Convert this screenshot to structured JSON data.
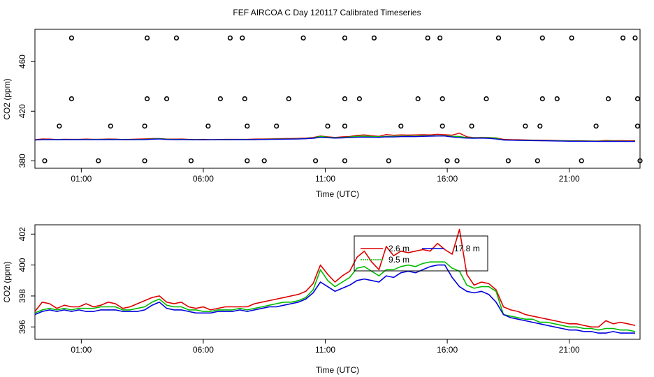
{
  "chart_data": {
    "title": "FEF AIRCOA C  Day 120117  Calibrated Timeseries",
    "charts": [
      {
        "id": "top",
        "type": "scatter+line",
        "xlabel": "Time (UTC)",
        "ylabel": "CO2 (ppm)",
        "xlim": [
          -0.9,
          23.9
        ],
        "ylim": [
          374,
          486
        ],
        "xticks": [
          1,
          6,
          11,
          16,
          21
        ],
        "xtick_labels": [
          "01:00",
          "06:00",
          "11:00",
          "16:00",
          "21:00"
        ],
        "yticks": [
          380,
          420,
          460
        ],
        "ytick_labels": [
          "380",
          "420",
          "460"
        ],
        "outlier_points": [
          [
            0.6,
            479
          ],
          [
            3.7,
            479
          ],
          [
            4.9,
            479
          ],
          [
            7.1,
            479
          ],
          [
            7.6,
            479
          ],
          [
            10.1,
            479
          ],
          [
            11.8,
            479
          ],
          [
            13.0,
            479
          ],
          [
            15.2,
            479
          ],
          [
            15.7,
            479
          ],
          [
            18.1,
            479
          ],
          [
            19.9,
            479
          ],
          [
            21.1,
            479
          ],
          [
            23.2,
            479
          ],
          [
            23.7,
            479
          ],
          [
            0.6,
            430
          ],
          [
            3.7,
            430
          ],
          [
            4.5,
            430
          ],
          [
            6.7,
            430
          ],
          [
            7.7,
            430
          ],
          [
            9.5,
            430
          ],
          [
            11.8,
            430
          ],
          [
            12.4,
            430
          ],
          [
            14.8,
            430
          ],
          [
            15.8,
            430
          ],
          [
            17.6,
            430
          ],
          [
            19.9,
            430
          ],
          [
            20.5,
            430
          ],
          [
            22.6,
            430
          ],
          [
            23.8,
            430
          ],
          [
            0.1,
            408
          ],
          [
            2.2,
            408
          ],
          [
            3.6,
            408
          ],
          [
            6.2,
            408
          ],
          [
            7.8,
            408
          ],
          [
            9.0,
            408
          ],
          [
            11.1,
            408
          ],
          [
            11.8,
            408
          ],
          [
            14.1,
            408
          ],
          [
            15.8,
            408
          ],
          [
            17.0,
            408
          ],
          [
            19.2,
            408
          ],
          [
            19.8,
            408
          ],
          [
            22.1,
            408
          ],
          [
            23.8,
            408
          ],
          [
            -0.5,
            380
          ],
          [
            1.7,
            380
          ],
          [
            3.6,
            380
          ],
          [
            5.5,
            380
          ],
          [
            7.8,
            380
          ],
          [
            8.5,
            380
          ],
          [
            10.6,
            380
          ],
          [
            11.8,
            380
          ],
          [
            13.6,
            380
          ],
          [
            16.0,
            380
          ],
          [
            16.4,
            380
          ],
          [
            18.5,
            380
          ],
          [
            19.7,
            380
          ],
          [
            21.5,
            380
          ],
          [
            23.9,
            380
          ]
        ],
        "series": [
          {
            "name": "2.6 m",
            "color": "#dd0000"
          },
          {
            "name": "9.5 m",
            "color": "#00bb00"
          },
          {
            "name": "17.8 m",
            "color": "#0000dd"
          }
        ]
      },
      {
        "id": "bottom",
        "type": "line",
        "xlabel": "Time (UTC)",
        "ylabel": "CO2 (ppm)",
        "xlim": [
          -0.9,
          23.9
        ],
        "ylim": [
          395.2,
          402.6
        ],
        "xticks": [
          1,
          6,
          11,
          16,
          21
        ],
        "xtick_labels": [
          "01:00",
          "06:00",
          "11:00",
          "16:00",
          "21:00"
        ],
        "yticks": [
          396,
          398,
          400,
          402
        ],
        "ytick_labels": [
          "396",
          "398",
          "400",
          "402"
        ],
        "legend_position": "top-center",
        "series": [
          {
            "name": "2.6 m",
            "color": "#dd0000",
            "x": [
              -0.9,
              -0.6,
              -0.3,
              0,
              0.3,
              0.6,
              0.9,
              1.2,
              1.5,
              1.8,
              2.1,
              2.4,
              2.7,
              3.0,
              3.3,
              3.6,
              3.9,
              4.2,
              4.5,
              4.8,
              5.1,
              5.4,
              5.7,
              6.0,
              6.3,
              6.6,
              6.9,
              7.2,
              7.5,
              7.8,
              8.1,
              8.4,
              8.7,
              9.0,
              9.3,
              9.6,
              9.9,
              10.2,
              10.5,
              10.8,
              11.1,
              11.4,
              11.7,
              12.0,
              12.3,
              12.6,
              12.9,
              13.2,
              13.5,
              13.8,
              14.1,
              14.4,
              14.7,
              15.0,
              15.3,
              15.6,
              15.9,
              16.2,
              16.5,
              16.8,
              17.1,
              17.4,
              17.7,
              18.0,
              18.3,
              18.6,
              18.9,
              19.2,
              19.5,
              19.8,
              20.1,
              20.4,
              20.7,
              21.0,
              21.3,
              21.6,
              21.9,
              22.2,
              22.5,
              22.8,
              23.1,
              23.4,
              23.7
            ],
            "values": [
              397.0,
              397.6,
              397.5,
              397.2,
              397.4,
              397.3,
              397.3,
              397.5,
              397.3,
              397.4,
              397.6,
              397.5,
              397.2,
              397.3,
              397.5,
              397.7,
              397.9,
              398.0,
              397.6,
              397.5,
              397.6,
              397.3,
              397.2,
              397.3,
              397.1,
              397.2,
              397.3,
              397.3,
              397.3,
              397.3,
              397.5,
              397.6,
              397.7,
              397.8,
              397.9,
              398.0,
              398.1,
              398.3,
              398.8,
              400.0,
              399.4,
              398.9,
              399.3,
              399.6,
              400.5,
              400.9,
              400.2,
              399.7,
              401.2,
              400.6,
              400.9,
              400.8,
              400.9,
              401.0,
              400.9,
              401.4,
              401.0,
              400.7,
              402.3,
              399.4,
              398.7,
              398.9,
              398.8,
              398.4,
              397.3,
              397.1,
              397.0,
              396.8,
              396.7,
              396.6,
              396.5,
              396.4,
              396.3,
              396.2,
              396.2,
              396.1,
              396.0,
              396.0,
              396.4,
              396.2,
              396.3,
              396.2,
              396.1
            ]
          },
          {
            "name": "9.5 m",
            "color": "#00bb00",
            "x": [
              -0.9,
              -0.6,
              -0.3,
              0,
              0.3,
              0.6,
              0.9,
              1.2,
              1.5,
              1.8,
              2.1,
              2.4,
              2.7,
              3.0,
              3.3,
              3.6,
              3.9,
              4.2,
              4.5,
              4.8,
              5.1,
              5.4,
              5.7,
              6.0,
              6.3,
              6.6,
              6.9,
              7.2,
              7.5,
              7.8,
              8.1,
              8.4,
              8.7,
              9.0,
              9.3,
              9.6,
              9.9,
              10.2,
              10.5,
              10.8,
              11.1,
              11.4,
              11.7,
              12.0,
              12.3,
              12.6,
              12.9,
              13.2,
              13.5,
              13.8,
              14.1,
              14.4,
              14.7,
              15.0,
              15.3,
              15.6,
              15.9,
              16.2,
              16.5,
              16.8,
              17.1,
              17.4,
              17.7,
              18.0,
              18.3,
              18.6,
              18.9,
              19.2,
              19.5,
              19.8,
              20.1,
              20.4,
              20.7,
              21.0,
              21.3,
              21.6,
              21.9,
              22.2,
              22.5,
              22.8,
              23.1,
              23.4,
              23.7
            ],
            "values": [
              396.9,
              397.1,
              397.2,
              397.1,
              397.2,
              397.1,
              397.2,
              397.2,
              397.2,
              397.3,
              397.3,
              397.3,
              397.1,
              397.1,
              397.2,
              397.3,
              397.6,
              397.8,
              397.4,
              397.3,
              397.3,
              397.1,
              397.1,
              397.0,
              397.0,
              397.1,
              397.1,
              397.1,
              397.2,
              397.1,
              397.2,
              397.3,
              397.4,
              397.5,
              397.6,
              397.6,
              397.7,
              397.9,
              398.4,
              399.7,
              399.0,
              398.6,
              398.9,
              399.2,
              399.8,
              399.9,
              399.6,
              399.3,
              399.7,
              399.7,
              399.9,
              400.0,
              399.9,
              400.1,
              400.2,
              400.2,
              400.2,
              399.8,
              399.6,
              398.7,
              398.5,
              398.6,
              398.6,
              398.3,
              396.8,
              396.7,
              396.6,
              396.5,
              396.5,
              396.3,
              396.3,
              396.2,
              396.1,
              396.0,
              396.0,
              395.9,
              395.9,
              395.8,
              395.9,
              395.9,
              395.8,
              395.8,
              395.7
            ]
          },
          {
            "name": "17.8 m",
            "color": "#0000dd",
            "x": [
              -0.9,
              -0.6,
              -0.3,
              0,
              0.3,
              0.6,
              0.9,
              1.2,
              1.5,
              1.8,
              2.1,
              2.4,
              2.7,
              3.0,
              3.3,
              3.6,
              3.9,
              4.2,
              4.5,
              4.8,
              5.1,
              5.4,
              5.7,
              6.0,
              6.3,
              6.6,
              6.9,
              7.2,
              7.5,
              7.8,
              8.1,
              8.4,
              8.7,
              9.0,
              9.3,
              9.6,
              9.9,
              10.2,
              10.5,
              10.8,
              11.1,
              11.4,
              11.7,
              12.0,
              12.3,
              12.6,
              12.9,
              13.2,
              13.5,
              13.8,
              14.1,
              14.4,
              14.7,
              15.0,
              15.3,
              15.6,
              15.9,
              16.2,
              16.5,
              16.8,
              17.1,
              17.4,
              17.7,
              18.0,
              18.3,
              18.6,
              18.9,
              19.2,
              19.5,
              19.8,
              20.1,
              20.4,
              20.7,
              21.0,
              21.3,
              21.6,
              21.9,
              22.2,
              22.5,
              22.8,
              23.1,
              23.4,
              23.7
            ],
            "values": [
              396.8,
              397.0,
              397.1,
              397.0,
              397.1,
              397.0,
              397.1,
              397.0,
              397.0,
              397.1,
              397.1,
              397.1,
              397.0,
              397.0,
              397.0,
              397.1,
              397.4,
              397.6,
              397.2,
              397.1,
              397.1,
              397.0,
              396.9,
              396.9,
              396.9,
              397.0,
              397.0,
              397.0,
              397.1,
              397.0,
              397.1,
              397.2,
              397.3,
              397.3,
              397.4,
              397.5,
              397.6,
              397.8,
              398.2,
              398.9,
              398.6,
              398.3,
              398.5,
              398.7,
              399.0,
              399.1,
              399.0,
              398.9,
              399.3,
              399.2,
              399.5,
              399.6,
              399.5,
              399.7,
              399.9,
              400.0,
              400.0,
              399.2,
              398.6,
              398.3,
              398.2,
              398.3,
              398.1,
              397.6,
              396.8,
              396.6,
              396.5,
              396.4,
              396.3,
              396.2,
              396.1,
              396.0,
              395.9,
              395.8,
              395.8,
              395.7,
              395.7,
              395.6,
              395.6,
              395.7,
              395.6,
              395.6,
              395.6
            ]
          }
        ]
      }
    ]
  }
}
